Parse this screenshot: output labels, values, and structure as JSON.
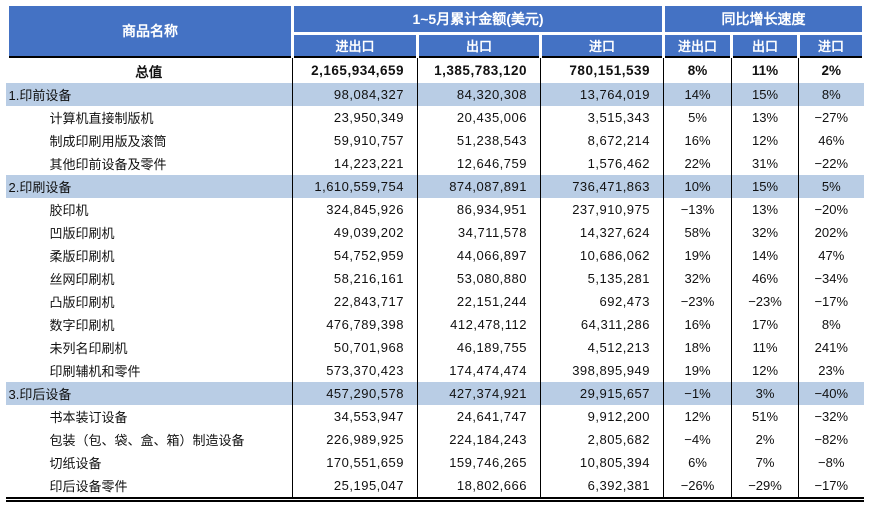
{
  "colors": {
    "header_bg": "#4472c4",
    "header_text": "#ffffff",
    "section_row_bg": "#b9cde5",
    "body_text": "#111111",
    "grid_border": "#000000"
  },
  "chart_data": {
    "type": "table",
    "header": {
      "product_col": "商品名称",
      "groups": [
        {
          "label": "1~5月累计金额(美元)",
          "sub": [
            "进出口",
            "出口",
            "进口"
          ]
        },
        {
          "label": "同比增长速度",
          "sub": [
            "进出口",
            "出口",
            "进口"
          ]
        }
      ]
    },
    "rows": [
      {
        "style": "total",
        "name": "总值",
        "values": [
          "2,165,934,659",
          "1,385,783,120",
          "780,151,539",
          "8%",
          "11%",
          "2%"
        ]
      },
      {
        "style": "section",
        "name": "1.印前设备",
        "values": [
          "98,084,327",
          "84,320,308",
          "13,764,019",
          "14%",
          "15%",
          "8%"
        ]
      },
      {
        "style": "item",
        "name": "计算机直接制版机",
        "values": [
          "23,950,349",
          "20,435,006",
          "3,515,343",
          "5%",
          "13%",
          "−27%"
        ]
      },
      {
        "style": "item",
        "name": "制成印刷用版及滚筒",
        "values": [
          "59,910,757",
          "51,238,543",
          "8,672,214",
          "16%",
          "12%",
          "46%"
        ]
      },
      {
        "style": "item",
        "name": "其他印前设备及零件",
        "values": [
          "14,223,221",
          "12,646,759",
          "1,576,462",
          "22%",
          "31%",
          "−22%"
        ]
      },
      {
        "style": "section",
        "name": "2.印刷设备",
        "values": [
          "1,610,559,754",
          "874,087,891",
          "736,471,863",
          "10%",
          "15%",
          "5%"
        ]
      },
      {
        "style": "item",
        "name": "胶印机",
        "values": [
          "324,845,926",
          "86,934,951",
          "237,910,975",
          "−13%",
          "13%",
          "−20%"
        ]
      },
      {
        "style": "item",
        "name": "凹版印刷机",
        "values": [
          "49,039,202",
          "34,711,578",
          "14,327,624",
          "58%",
          "32%",
          "202%"
        ]
      },
      {
        "style": "item",
        "name": "柔版印刷机",
        "values": [
          "54,752,959",
          "44,066,897",
          "10,686,062",
          "19%",
          "14%",
          "47%"
        ]
      },
      {
        "style": "item",
        "name": "丝网印刷机",
        "values": [
          "58,216,161",
          "53,080,880",
          "5,135,281",
          "32%",
          "46%",
          "−34%"
        ]
      },
      {
        "style": "item",
        "name": "凸版印刷机",
        "values": [
          "22,843,717",
          "22,151,244",
          "692,473",
          "−23%",
          "−23%",
          "−17%"
        ]
      },
      {
        "style": "item",
        "name": "数字印刷机",
        "values": [
          "476,789,398",
          "412,478,112",
          "64,311,286",
          "16%",
          "17%",
          "8%"
        ]
      },
      {
        "style": "item",
        "name": "未列名印刷机",
        "values": [
          "50,701,968",
          "46,189,755",
          "4,512,213",
          "18%",
          "11%",
          "241%"
        ]
      },
      {
        "style": "item",
        "name": "印刷辅机和零件",
        "values": [
          "573,370,423",
          "174,474,474",
          "398,895,949",
          "19%",
          "12%",
          "23%"
        ]
      },
      {
        "style": "section",
        "name": "3.印后设备",
        "values": [
          "457,290,578",
          "427,374,921",
          "29,915,657",
          "−1%",
          "3%",
          "−40%"
        ]
      },
      {
        "style": "item",
        "name": "书本装订设备",
        "values": [
          "34,553,947",
          "24,641,747",
          "9,912,200",
          "12%",
          "51%",
          "−32%"
        ]
      },
      {
        "style": "item",
        "name": "包装（包、袋、盒、箱）制造设备",
        "values": [
          "226,989,925",
          "224,184,243",
          "2,805,682",
          "−4%",
          "2%",
          "−82%"
        ]
      },
      {
        "style": "item",
        "name": "切纸设备",
        "values": [
          "170,551,659",
          "159,746,265",
          "10,805,394",
          "6%",
          "7%",
          "−8%"
        ]
      },
      {
        "style": "item",
        "name": "印后设备零件",
        "values": [
          "25,195,047",
          "18,802,666",
          "6,392,381",
          "−26%",
          "−29%",
          "−17%"
        ]
      }
    ]
  }
}
